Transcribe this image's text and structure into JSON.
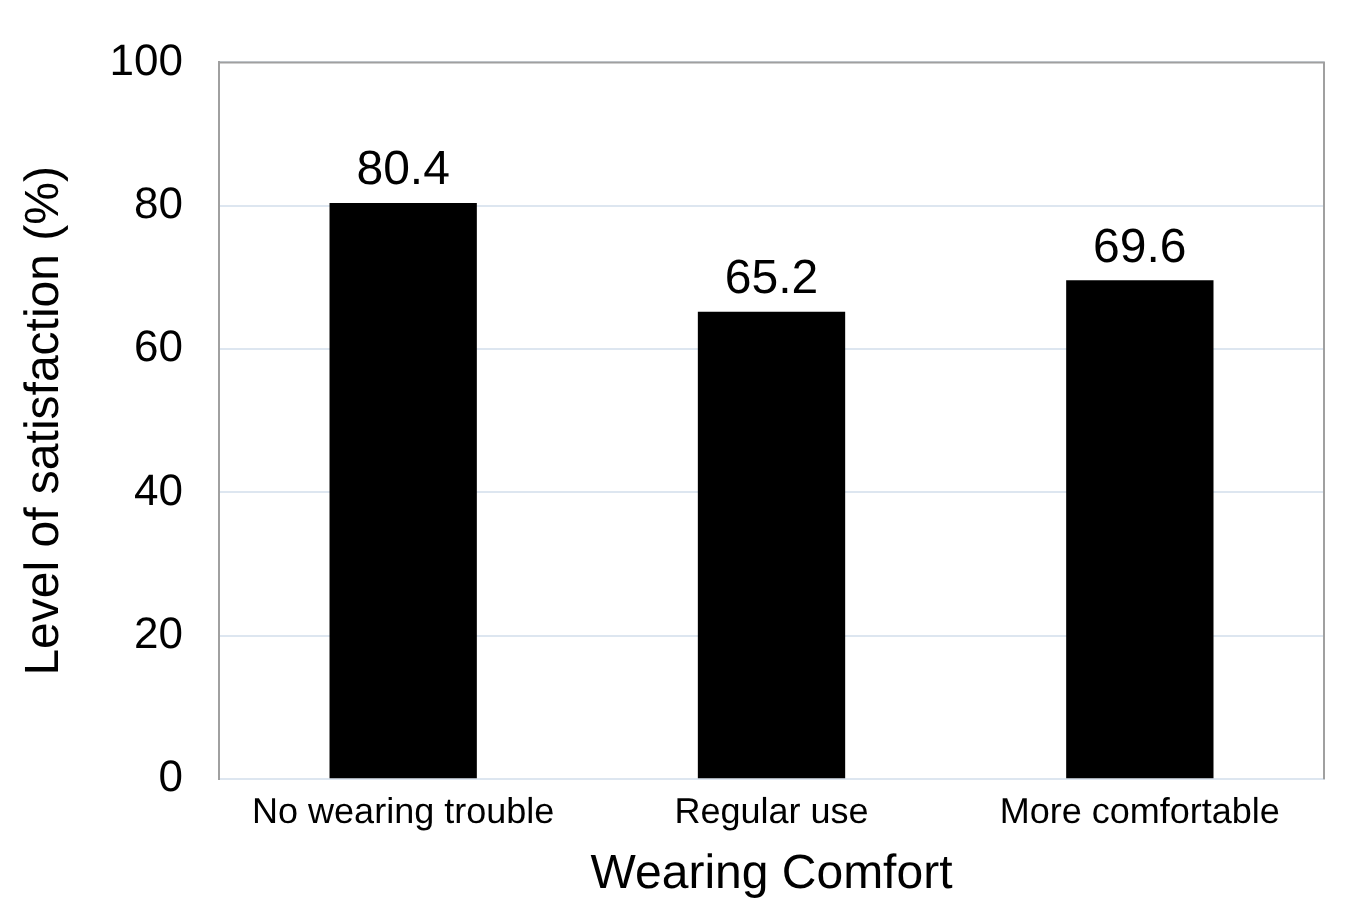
{
  "chart_data": {
    "type": "bar",
    "xlabel": "Wearing Comfort",
    "ylabel": "Level of satisfaction (%)",
    "categories": [
      "No wearing trouble",
      "Regular use",
      "More comfortable"
    ],
    "values": [
      80.4,
      65.2,
      69.6
    ],
    "color": "#000000",
    "ylim": [
      0,
      100
    ],
    "yticks": [
      0,
      20,
      40,
      60,
      80,
      100
    ],
    "grid": "y",
    "data_labels": true
  }
}
